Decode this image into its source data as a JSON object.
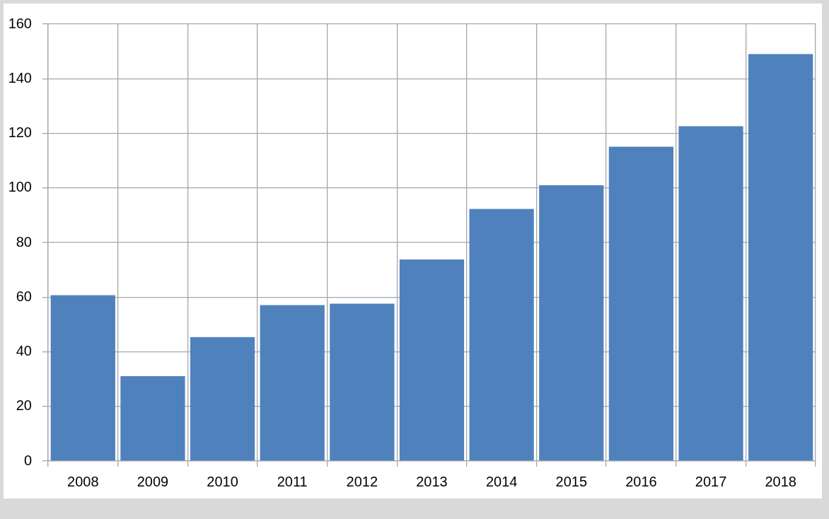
{
  "chart_data": {
    "type": "bar",
    "categories": [
      "2008",
      "2009",
      "2010",
      "2011",
      "2012",
      "2013",
      "2014",
      "2015",
      "2016",
      "2017",
      "2018"
    ],
    "values": [
      60.7,
      31.1,
      45.4,
      57.1,
      57.6,
      73.8,
      92.3,
      101.0,
      115.1,
      122.6,
      149.0
    ],
    "color": "#4f81bd",
    "ylim": [
      0,
      160
    ],
    "yticks": [
      0,
      20,
      40,
      60,
      80,
      100,
      120,
      140,
      160
    ],
    "grid": true
  }
}
